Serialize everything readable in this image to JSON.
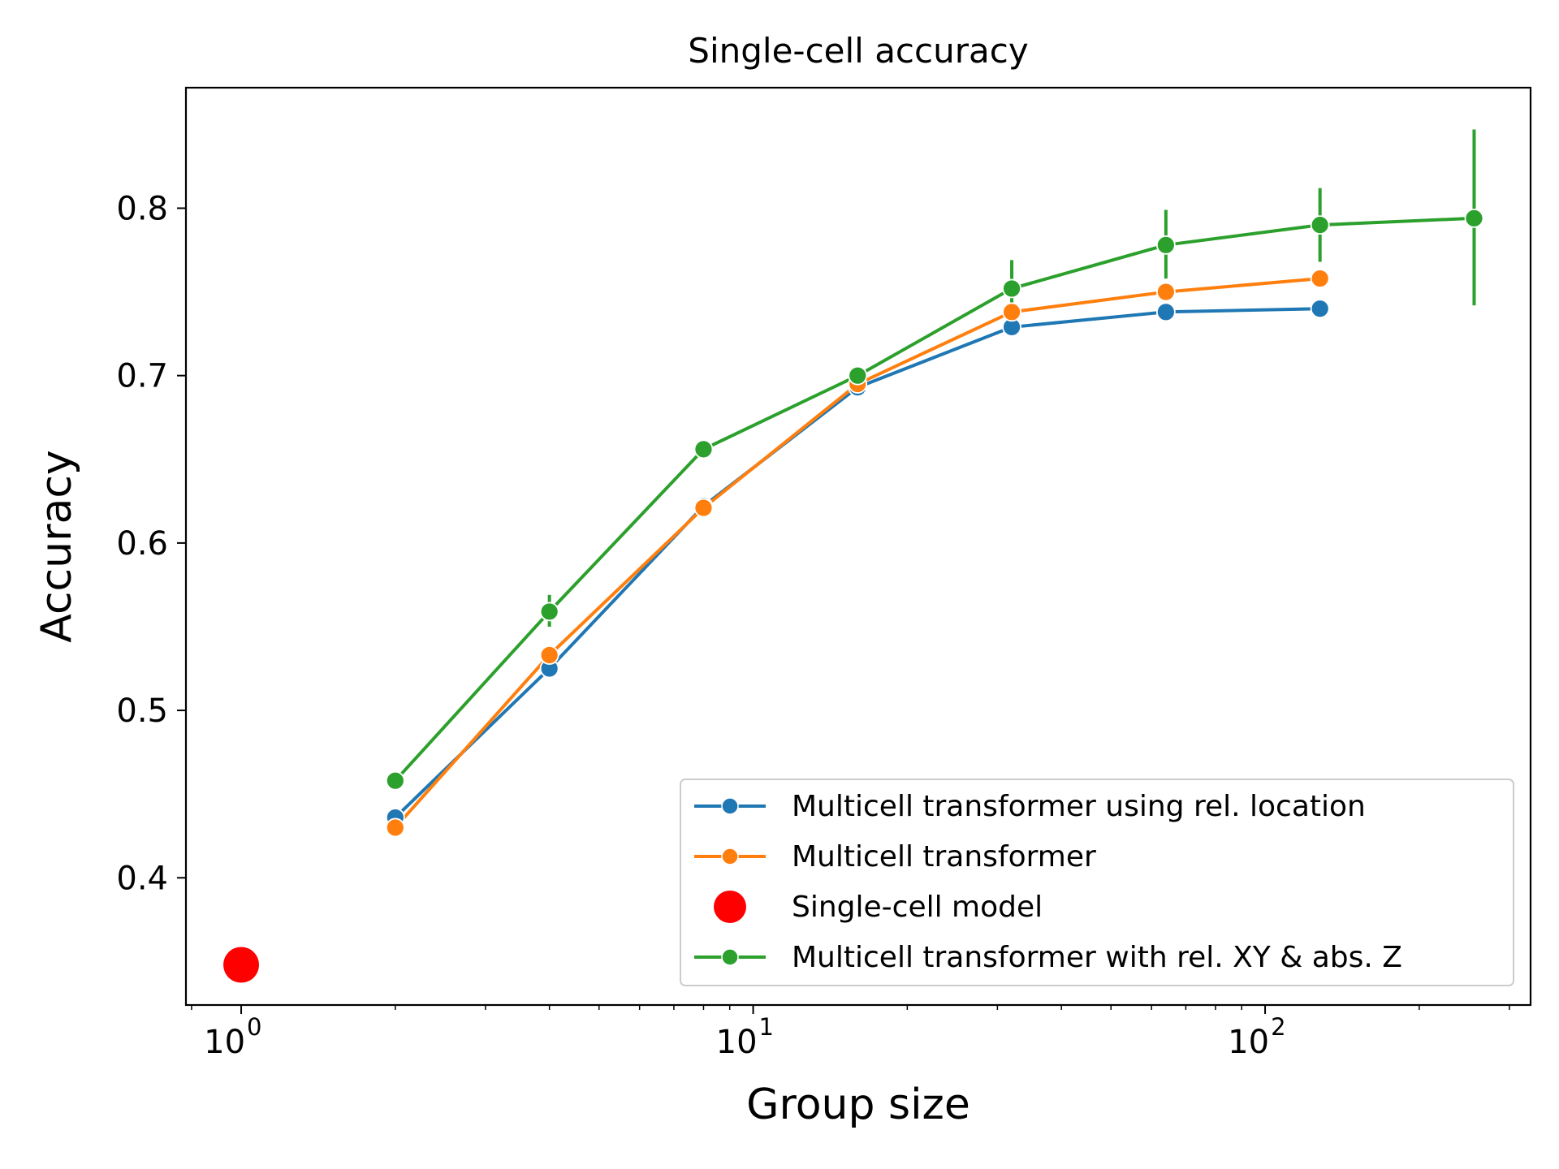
{
  "chart_data": {
    "type": "line",
    "title": "Single-cell accuracy",
    "xlabel": "Group size",
    "ylabel": "Accuracy",
    "xscale": "log",
    "xlim": [
      0.78,
      330
    ],
    "ylim": [
      0.324,
      0.872
    ],
    "x_ticks": [
      {
        "value": 1,
        "base": "10",
        "exp": "0"
      },
      {
        "value": 10,
        "base": "10",
        "exp": "1"
      },
      {
        "value": 100,
        "base": "10",
        "exp": "2"
      }
    ],
    "y_ticks": [
      {
        "value": 0.4,
        "label": "0.4"
      },
      {
        "value": 0.5,
        "label": "0.5"
      },
      {
        "value": 0.6,
        "label": "0.6"
      },
      {
        "value": 0.7,
        "label": "0.7"
      },
      {
        "value": 0.8,
        "label": "0.8"
      }
    ],
    "grid": false,
    "legend_position": "lower-right",
    "series": [
      {
        "name": "Multicell transformer using rel. location",
        "color": "#1f77b4",
        "style": "line-marker",
        "x": [
          2,
          4,
          8,
          16,
          32,
          64,
          128
        ],
        "y": [
          0.436,
          0.525,
          0.622,
          0.693,
          0.729,
          0.738,
          0.74
        ]
      },
      {
        "name": "Multicell transformer",
        "color": "#ff7f0e",
        "style": "line-marker",
        "x": [
          2,
          4,
          8,
          16,
          32,
          64,
          128
        ],
        "y": [
          0.43,
          0.533,
          0.621,
          0.695,
          0.738,
          0.75,
          0.758
        ]
      },
      {
        "name": "Single-cell model",
        "color": "#ff0000",
        "style": "scatter",
        "x": [
          1
        ],
        "y": [
          0.348
        ]
      },
      {
        "name": "Multicell transformer with rel. XY & abs. Z",
        "color": "#2ca02c",
        "style": "line-marker-errorbar",
        "x": [
          2,
          4,
          8,
          16,
          32,
          64,
          128,
          256
        ],
        "y": [
          0.458,
          0.559,
          0.656,
          0.7,
          0.752,
          0.778,
          0.79,
          0.794
        ],
        "err_low": [
          0.458,
          0.55,
          0.654,
          0.698,
          0.735,
          0.758,
          0.768,
          0.742
        ],
        "err_high": [
          0.458,
          0.569,
          0.659,
          0.702,
          0.769,
          0.799,
          0.812,
          0.847
        ]
      }
    ]
  }
}
